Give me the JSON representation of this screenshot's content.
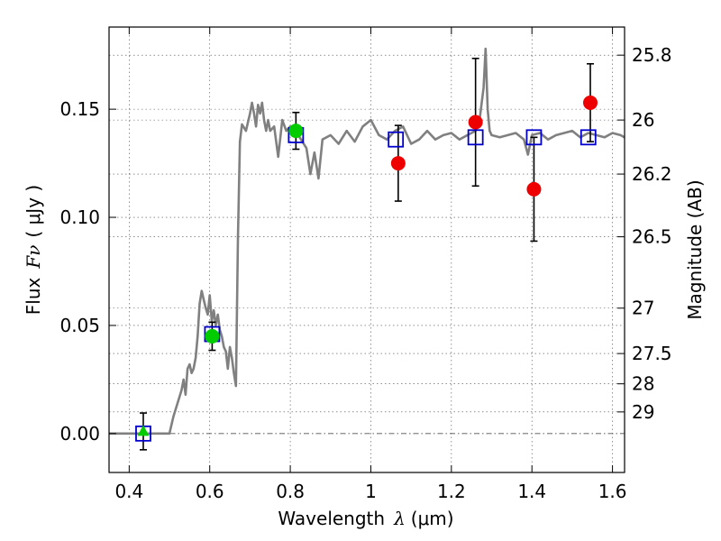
{
  "chart_data": {
    "type": "scatter",
    "xlabel_prefix": "Wavelength",
    "xlabel_symbol": "λ",
    "xlabel_unit": "(μm)",
    "ylabel_prefix": "Flux",
    "ylabel_symbol": "Fν",
    "ylabel_unit": "( μJy )",
    "y2label": "Magnitude (AB)",
    "xlim": [
      0.35,
      1.63
    ],
    "ylim": [
      -0.018,
      0.188
    ],
    "grid": true,
    "x_ticks": [
      0.4,
      0.6,
      0.8,
      1.0,
      1.2,
      1.4,
      1.6
    ],
    "x_tick_labels": [
      "0.4",
      "0.6",
      "0.8",
      "1",
      "1.2",
      "1.4",
      "1.6"
    ],
    "y_ticks": [
      0.0,
      0.05,
      0.1,
      0.15
    ],
    "y_tick_labels": [
      "0.00",
      "0.05",
      "0.10",
      "0.15"
    ],
    "y2_ticks": [
      {
        "label": "25.8",
        "flux": 0.175
      },
      {
        "label": "26",
        "flux": 0.145
      },
      {
        "label": "26.2",
        "flux": 0.12
      },
      {
        "label": "26.5",
        "flux": 0.091
      },
      {
        "label": "27",
        "flux": 0.058
      },
      {
        "label": "27.5",
        "flux": 0.037
      },
      {
        "label": "28",
        "flux": 0.023
      },
      {
        "label": "29",
        "flux": 0.01
      }
    ],
    "model_sed": {
      "color": "#808080",
      "x": [
        0.35,
        0.5,
        0.51,
        0.53,
        0.535,
        0.54,
        0.545,
        0.55,
        0.555,
        0.56,
        0.565,
        0.57,
        0.575,
        0.58,
        0.585,
        0.59,
        0.595,
        0.6,
        0.605,
        0.61,
        0.615,
        0.62,
        0.625,
        0.63,
        0.635,
        0.64,
        0.645,
        0.65,
        0.655,
        0.66,
        0.665,
        0.67,
        0.675,
        0.68,
        0.69,
        0.7,
        0.705,
        0.71,
        0.715,
        0.72,
        0.725,
        0.73,
        0.735,
        0.74,
        0.745,
        0.75,
        0.76,
        0.77,
        0.78,
        0.79,
        0.8,
        0.82,
        0.84,
        0.85,
        0.86,
        0.87,
        0.88,
        0.9,
        0.92,
        0.94,
        0.96,
        0.98,
        1.0,
        1.02,
        1.04,
        1.06,
        1.08,
        1.1,
        1.12,
        1.14,
        1.16,
        1.18,
        1.2,
        1.22,
        1.24,
        1.26,
        1.27,
        1.28,
        1.285,
        1.29,
        1.295,
        1.3,
        1.32,
        1.34,
        1.36,
        1.38,
        1.39,
        1.4,
        1.42,
        1.44,
        1.46,
        1.48,
        1.5,
        1.52,
        1.54,
        1.56,
        1.58,
        1.6,
        1.62,
        1.63
      ],
      "y": [
        0.0,
        0.0,
        0.008,
        0.02,
        0.025,
        0.018,
        0.03,
        0.032,
        0.028,
        0.03,
        0.035,
        0.045,
        0.06,
        0.066,
        0.062,
        0.058,
        0.055,
        0.064,
        0.052,
        0.057,
        0.05,
        0.055,
        0.048,
        0.045,
        0.04,
        0.038,
        0.03,
        0.04,
        0.035,
        0.028,
        0.022,
        0.09,
        0.135,
        0.143,
        0.14,
        0.148,
        0.153,
        0.148,
        0.142,
        0.152,
        0.148,
        0.153,
        0.145,
        0.14,
        0.145,
        0.14,
        0.142,
        0.128,
        0.145,
        0.14,
        0.142,
        0.138,
        0.132,
        0.12,
        0.13,
        0.118,
        0.136,
        0.138,
        0.134,
        0.14,
        0.135,
        0.142,
        0.145,
        0.138,
        0.136,
        0.14,
        0.142,
        0.134,
        0.136,
        0.14,
        0.136,
        0.138,
        0.139,
        0.136,
        0.138,
        0.14,
        0.145,
        0.16,
        0.178,
        0.15,
        0.14,
        0.138,
        0.137,
        0.138,
        0.139,
        0.136,
        0.129,
        0.138,
        0.139,
        0.136,
        0.138,
        0.139,
        0.14,
        0.137,
        0.139,
        0.138,
        0.137,
        0.139,
        0.138,
        0.137
      ]
    },
    "model_bands": {
      "color": "#0000cc",
      "points": [
        {
          "x": 0.435,
          "y": 0.0
        },
        {
          "x": 0.606,
          "y": 0.046
        },
        {
          "x": 0.814,
          "y": 0.138
        },
        {
          "x": 1.062,
          "y": 0.136
        },
        {
          "x": 1.26,
          "y": 0.137
        },
        {
          "x": 1.405,
          "y": 0.137
        },
        {
          "x": 1.54,
          "y": 0.137
        }
      ]
    },
    "obs_green": {
      "color": "#00cc00",
      "points": [
        {
          "x": 0.606,
          "y": 0.045,
          "err": 0.0065
        },
        {
          "x": 0.814,
          "y": 0.14,
          "err": 0.0085
        }
      ],
      "triangle": {
        "x": 0.435,
        "y": 0.001,
        "err": 0.0085
      }
    },
    "obs_red": {
      "color": "#ee0000",
      "points": [
        {
          "x": 1.068,
          "y": 0.125,
          "err": 0.0175
        },
        {
          "x": 1.26,
          "y": 0.144,
          "err": 0.0295
        },
        {
          "x": 1.405,
          "y": 0.113,
          "err": 0.024
        },
        {
          "x": 1.545,
          "y": 0.153,
          "err": 0.018
        }
      ]
    },
    "zero_line": 0.0
  }
}
